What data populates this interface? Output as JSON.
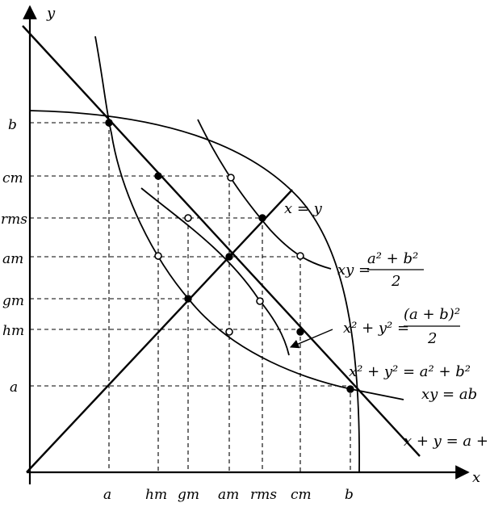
{
  "axes": {
    "x_label": "x",
    "y_label": "y"
  },
  "x_ticks": [
    "a",
    "hm",
    "gm",
    "am",
    "rms",
    "cm",
    "b"
  ],
  "y_ticks": [
    "b",
    "cm",
    "rms",
    "am",
    "gm",
    "hm",
    "a"
  ],
  "curve_labels": {
    "x_eq_y": "x = y",
    "xy_mid_lhs": "xy =",
    "xy_mid_num": "a² + b²",
    "xy_mid_den": "2",
    "circle_mid_lhs": "x² + y² =",
    "circle_mid_num": "(a + b)²",
    "circle_mid_den": "2",
    "circle_big": "x² + y² = a² + b²",
    "xy_ab": "xy = ab",
    "sum_line": "x + y = a + b"
  },
  "colors": {
    "ink": "#000000",
    "paper": "#ffffff"
  }
}
